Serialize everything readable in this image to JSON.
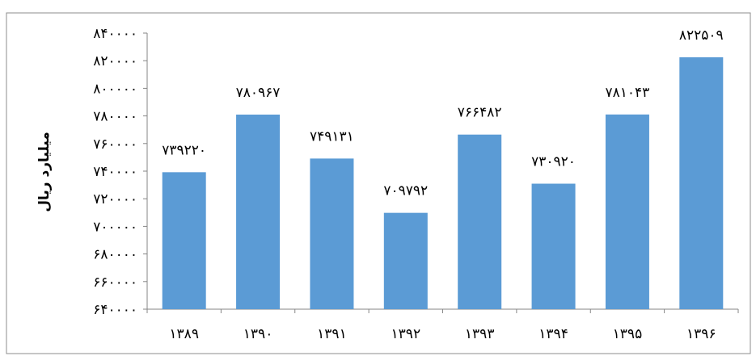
{
  "chart_data": {
    "type": "bar",
    "title": "",
    "xlabel": "",
    "ylabel": "میلیارد ریال",
    "categories": [
      "۱۳۸۹",
      "۱۳۹۰",
      "۱۳۹۱",
      "۱۳۹۲",
      "۱۳۹۳",
      "۱۳۹۴",
      "۱۳۹۵",
      "۱۳۹۶"
    ],
    "values": [
      739220,
      780967,
      749131,
      709792,
      766482,
      730920,
      781043,
      822509
    ],
    "data_labels": [
      "۷۳۹۲۲۰",
      "۷۸۰۹۶۷",
      "۷۴۹۱۳۱",
      "۷۰۹۷۹۲",
      "۷۶۶۴۸۲",
      "۷۳۰۹۲۰",
      "۷۸۱۰۴۳",
      "۸۲۲۵۰۹"
    ],
    "ylim": [
      640000,
      840000
    ],
    "yticks": [
      640000,
      660000,
      680000,
      700000,
      720000,
      740000,
      760000,
      780000,
      800000,
      820000,
      840000
    ],
    "ytick_labels": [
      "۶۴۰۰۰۰",
      "۶۶۰۰۰۰",
      "۶۸۰۰۰۰",
      "۷۰۰۰۰۰",
      "۷۲۰۰۰۰",
      "۷۴۰۰۰۰",
      "۷۶۰۰۰۰",
      "۷۸۰۰۰۰",
      "۸۰۰۰۰۰",
      "۸۲۰۰۰۰",
      "۸۴۰۰۰۰"
    ],
    "grid": false,
    "legend": "none",
    "colors": {
      "bar": "#5B9BD5",
      "axis": "#868686",
      "frame": "#8c8c8c"
    }
  }
}
